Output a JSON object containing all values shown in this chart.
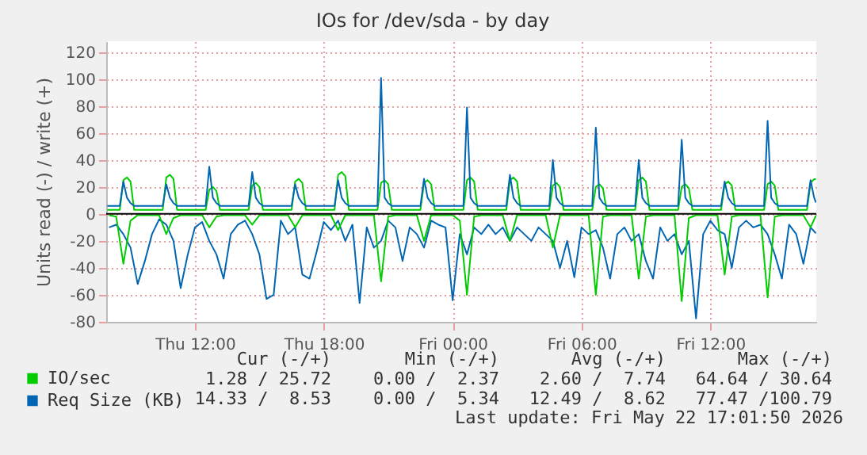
{
  "chart_data": {
    "type": "line",
    "title": "IOs for /dev/sda - by day",
    "ylabel": "Units read (-) / write (+)",
    "xlim": [
      "2026-05-21T07:52",
      "2026-05-22T16:56"
    ],
    "xticks": [
      {
        "value": "2026-05-21T12:00",
        "label": "Thu 12:00"
      },
      {
        "value": "2026-05-21T18:00",
        "label": "Thu 18:00"
      },
      {
        "value": "2026-05-22T00:00",
        "label": "Fri 00:00"
      },
      {
        "value": "2026-05-22T06:00",
        "label": "Fri 06:00"
      },
      {
        "value": "2026-05-22T12:00",
        "label": "Fri 12:00"
      }
    ],
    "ylim": [
      -80,
      128
    ],
    "yticks": [
      -80,
      -60,
      -40,
      -20,
      0,
      20,
      40,
      60,
      80,
      100,
      120
    ],
    "grid": true,
    "legend": "bottom",
    "x": [
      "2026-05-21T08:00",
      "2026-05-21T08:20",
      "2026-05-21T08:40",
      "2026-05-21T09:00",
      "2026-05-21T09:20",
      "2026-05-21T09:40",
      "2026-05-21T10:00",
      "2026-05-21T10:20",
      "2026-05-21T10:40",
      "2026-05-21T11:00",
      "2026-05-21T11:20",
      "2026-05-21T11:40",
      "2026-05-21T12:00",
      "2026-05-21T12:20",
      "2026-05-21T12:40",
      "2026-05-21T13:00",
      "2026-05-21T13:20",
      "2026-05-21T13:40",
      "2026-05-21T14:00",
      "2026-05-21T14:20",
      "2026-05-21T14:40",
      "2026-05-21T15:00",
      "2026-05-21T15:20",
      "2026-05-21T15:40",
      "2026-05-21T16:00",
      "2026-05-21T16:20",
      "2026-05-21T16:40",
      "2026-05-21T17:00",
      "2026-05-21T17:20",
      "2026-05-21T17:40",
      "2026-05-21T18:00",
      "2026-05-21T18:20",
      "2026-05-21T18:40",
      "2026-05-21T19:00",
      "2026-05-21T19:20",
      "2026-05-21T19:40",
      "2026-05-21T20:00",
      "2026-05-21T20:20",
      "2026-05-21T20:40",
      "2026-05-21T21:00",
      "2026-05-21T21:20",
      "2026-05-21T21:40",
      "2026-05-21T22:00",
      "2026-05-21T22:20",
      "2026-05-21T22:40",
      "2026-05-21T23:00",
      "2026-05-21T23:20",
      "2026-05-21T23:40",
      "2026-05-22T00:00",
      "2026-05-22T00:20",
      "2026-05-22T00:40",
      "2026-05-22T01:00",
      "2026-05-22T01:20",
      "2026-05-22T01:40",
      "2026-05-22T02:00",
      "2026-05-22T02:20",
      "2026-05-22T02:40",
      "2026-05-22T03:00",
      "2026-05-22T03:20",
      "2026-05-22T03:40",
      "2026-05-22T04:00",
      "2026-05-22T04:20",
      "2026-05-22T04:40",
      "2026-05-22T05:00",
      "2026-05-22T05:20",
      "2026-05-22T05:40",
      "2026-05-22T06:00",
      "2026-05-22T06:20",
      "2026-05-22T06:40",
      "2026-05-22T07:00",
      "2026-05-22T07:20",
      "2026-05-22T07:40",
      "2026-05-22T08:00",
      "2026-05-22T08:20",
      "2026-05-22T08:40",
      "2026-05-22T09:00",
      "2026-05-22T09:20",
      "2026-05-22T09:40",
      "2026-05-22T10:00",
      "2026-05-22T10:20",
      "2026-05-22T10:40",
      "2026-05-22T11:00",
      "2026-05-22T11:20",
      "2026-05-22T11:40",
      "2026-05-22T12:00",
      "2026-05-22T12:20",
      "2026-05-22T12:40",
      "2026-05-22T13:00",
      "2026-05-22T13:20",
      "2026-05-22T13:40",
      "2026-05-22T14:00",
      "2026-05-22T14:20",
      "2026-05-22T14:40",
      "2026-05-22T15:00",
      "2026-05-22T15:20",
      "2026-05-22T15:40",
      "2026-05-22T16:00",
      "2026-05-22T16:20",
      "2026-05-22T16:40",
      "2026-05-22T16:55"
    ],
    "series": [
      {
        "color": "#0066b3",
        "values": [
          -10,
          -8,
          -15,
          -25,
          -52,
          -35,
          -15,
          -4,
          -8,
          -20,
          -55,
          -30,
          -10,
          -6,
          -20,
          -30,
          -48,
          -15,
          -8,
          -5,
          -15,
          -30,
          -63,
          -60,
          -5,
          -15,
          -10,
          -45,
          -48,
          -28,
          -6,
          -12,
          -5,
          -20,
          -8,
          -66,
          -10,
          -25,
          -20,
          -5,
          -10,
          -35,
          -10,
          -15,
          -25,
          -5,
          -8,
          -10,
          -64,
          -15,
          -30,
          -10,
          -15,
          -8,
          -15,
          -10,
          -20,
          -10,
          -15,
          -20,
          -10,
          -15,
          -20,
          -40,
          -20,
          -47,
          -10,
          -15,
          -12,
          -25,
          -48,
          -15,
          -10,
          -20,
          -15,
          -35,
          -48,
          -10,
          -20,
          -15,
          -30,
          -20,
          -77.47,
          -15,
          -5,
          -12,
          -15,
          -40,
          -10,
          -5,
          -10,
          -8,
          -15,
          -30,
          -48,
          -8,
          -15,
          -37,
          -10,
          -14.33
        ]
      },
      {
        "color": "#00cc00",
        "values": [
          -1,
          -2,
          -37,
          -5,
          -1,
          -1,
          -1,
          -1,
          -15,
          -3,
          -1,
          -1,
          -1,
          -1,
          -10,
          -2,
          -1,
          -1,
          -1,
          -1,
          -8,
          -1,
          -1,
          -1,
          -1,
          -1,
          -10,
          -1,
          -1,
          -1,
          -1,
          -1,
          -12,
          -1,
          -1,
          -1,
          -1,
          -1,
          -50,
          -2,
          -1,
          -1,
          -1,
          -1,
          -20,
          -1,
          -1,
          -1,
          -1,
          -5,
          -60,
          -2,
          -1,
          -1,
          -1,
          -1,
          -20,
          -1,
          -1,
          -1,
          -1,
          -1,
          -25,
          -1,
          -1,
          -1,
          -1,
          -1,
          -60,
          -2,
          -1,
          -1,
          -1,
          -1,
          -48,
          -2,
          -1,
          -1,
          -1,
          -1,
          -64.64,
          -3,
          -1,
          -1,
          -1,
          -1,
          -45,
          -2,
          -1,
          -1,
          -1,
          -1,
          -62,
          -2,
          -1,
          -1,
          -1,
          -1,
          -10,
          -1.28
        ]
      },
      {
        "name": "IO/sec",
        "color": "#00cc00",
        "x": [
          "2026-05-21T07:55",
          "2026-05-21T08:30",
          "2026-05-21T08:40",
          "2026-05-21T08:50",
          "2026-05-21T09:00",
          "2026-05-21T09:10",
          "2026-05-21T10:30",
          "2026-05-21T10:40",
          "2026-05-21T10:50",
          "2026-05-21T11:00",
          "2026-05-21T11:10",
          "2026-05-21T12:30",
          "2026-05-21T12:40",
          "2026-05-21T12:50",
          "2026-05-21T13:00",
          "2026-05-21T13:10",
          "2026-05-21T14:30",
          "2026-05-21T14:40",
          "2026-05-21T14:50",
          "2026-05-21T15:00",
          "2026-05-21T15:10",
          "2026-05-21T16:30",
          "2026-05-21T16:40",
          "2026-05-21T16:50",
          "2026-05-21T17:00",
          "2026-05-21T17:10",
          "2026-05-21T18:30",
          "2026-05-21T18:40",
          "2026-05-21T18:50",
          "2026-05-21T19:00",
          "2026-05-21T19:10",
          "2026-05-21T20:30",
          "2026-05-21T20:40",
          "2026-05-21T20:50",
          "2026-05-21T21:00",
          "2026-05-21T21:10",
          "2026-05-21T22:30",
          "2026-05-21T22:40",
          "2026-05-21T22:50",
          "2026-05-21T23:00",
          "2026-05-21T23:10",
          "2026-05-22T00:30",
          "2026-05-22T00:40",
          "2026-05-22T00:50",
          "2026-05-22T01:00",
          "2026-05-22T01:10",
          "2026-05-22T02:30",
          "2026-05-22T02:40",
          "2026-05-22T02:50",
          "2026-05-22T03:00",
          "2026-05-22T03:10",
          "2026-05-22T04:30",
          "2026-05-22T04:40",
          "2026-05-22T04:50",
          "2026-05-22T05:00",
          "2026-05-22T05:10",
          "2026-05-22T06:30",
          "2026-05-22T06:40",
          "2026-05-22T06:50",
          "2026-05-22T07:00",
          "2026-05-22T07:10",
          "2026-05-22T08:30",
          "2026-05-22T08:40",
          "2026-05-22T08:50",
          "2026-05-22T09:00",
          "2026-05-22T09:10",
          "2026-05-22T10:30",
          "2026-05-22T10:40",
          "2026-05-22T10:50",
          "2026-05-22T11:00",
          "2026-05-22T11:10",
          "2026-05-22T12:30",
          "2026-05-22T12:40",
          "2026-05-22T12:50",
          "2026-05-22T13:00",
          "2026-05-22T13:10",
          "2026-05-22T14:30",
          "2026-05-22T14:40",
          "2026-05-22T14:50",
          "2026-05-22T15:00",
          "2026-05-22T15:10",
          "2026-05-22T16:30",
          "2026-05-22T16:40",
          "2026-05-22T16:50",
          "2026-05-22T16:55"
        ],
        "values": [
          3,
          3,
          25,
          27,
          24,
          3,
          3,
          27,
          29,
          26,
          3,
          3,
          18,
          20,
          17,
          3,
          3,
          21,
          23,
          20,
          3,
          3,
          24,
          26,
          23,
          3,
          3,
          29,
          31,
          28,
          3,
          3,
          23,
          25,
          22,
          3,
          3,
          23,
          25,
          22,
          3,
          3,
          25,
          27,
          24,
          3,
          3,
          25,
          27,
          24,
          3,
          3,
          21,
          23,
          20,
          3,
          3,
          20,
          22,
          19,
          3,
          3,
          25,
          27,
          24,
          3,
          3,
          20,
          22,
          19,
          3,
          3,
          22,
          24,
          21,
          3,
          3,
          22,
          24,
          21,
          3,
          3,
          23,
          25.72,
          25.72
        ]
      },
      {
        "name": "Req Size (KB)",
        "color": "#0066b3",
        "x": [
          "2026-05-21T07:55",
          "2026-05-21T08:30",
          "2026-05-21T08:40",
          "2026-05-21T08:50",
          "2026-05-21T09:00",
          "2026-05-21T09:10",
          "2026-05-21T10:30",
          "2026-05-21T10:40",
          "2026-05-21T10:50",
          "2026-05-21T11:00",
          "2026-05-21T11:10",
          "2026-05-21T12:30",
          "2026-05-21T12:40",
          "2026-05-21T12:50",
          "2026-05-21T13:00",
          "2026-05-21T13:10",
          "2026-05-21T14:30",
          "2026-05-21T14:40",
          "2026-05-21T14:50",
          "2026-05-21T15:00",
          "2026-05-21T15:10",
          "2026-05-21T16:30",
          "2026-05-21T16:40",
          "2026-05-21T16:50",
          "2026-05-21T17:00",
          "2026-05-21T17:10",
          "2026-05-21T18:30",
          "2026-05-21T18:40",
          "2026-05-21T18:50",
          "2026-05-21T19:00",
          "2026-05-21T19:10",
          "2026-05-21T20:30",
          "2026-05-21T20:40",
          "2026-05-21T20:50",
          "2026-05-21T21:00",
          "2026-05-21T21:10",
          "2026-05-21T22:30",
          "2026-05-21T22:40",
          "2026-05-21T22:50",
          "2026-05-21T23:00",
          "2026-05-21T23:10",
          "2026-05-22T00:30",
          "2026-05-22T00:40",
          "2026-05-22T00:50",
          "2026-05-22T01:00",
          "2026-05-22T01:10",
          "2026-05-22T02:30",
          "2026-05-22T02:40",
          "2026-05-22T02:50",
          "2026-05-22T03:00",
          "2026-05-22T03:10",
          "2026-05-22T04:30",
          "2026-05-22T04:40",
          "2026-05-22T04:50",
          "2026-05-22T05:00",
          "2026-05-22T05:10",
          "2026-05-22T06:30",
          "2026-05-22T06:40",
          "2026-05-22T06:50",
          "2026-05-22T07:00",
          "2026-05-22T07:10",
          "2026-05-22T08:30",
          "2026-05-22T08:40",
          "2026-05-22T08:50",
          "2026-05-22T09:00",
          "2026-05-22T09:10",
          "2026-05-22T10:30",
          "2026-05-22T10:40",
          "2026-05-22T10:50",
          "2026-05-22T11:00",
          "2026-05-22T11:10",
          "2026-05-22T12:30",
          "2026-05-22T12:40",
          "2026-05-22T12:50",
          "2026-05-22T13:00",
          "2026-05-22T13:10",
          "2026-05-22T14:30",
          "2026-05-22T14:40",
          "2026-05-22T14:50",
          "2026-05-22T15:00",
          "2026-05-22T15:10",
          "2026-05-22T16:30",
          "2026-05-22T16:40",
          "2026-05-22T16:50",
          "2026-05-22T16:55"
        ],
        "values": [
          6,
          6,
          24,
          12,
          8,
          6,
          6,
          22,
          12,
          8,
          6,
          6,
          35,
          12,
          8,
          6,
          6,
          31,
          12,
          8,
          6,
          6,
          22,
          12,
          8,
          6,
          6,
          25,
          12,
          8,
          6,
          6,
          100.79,
          12,
          8,
          6,
          6,
          26,
          12,
          8,
          6,
          6,
          79,
          12,
          8,
          6,
          6,
          29,
          12,
          8,
          6,
          6,
          40,
          12,
          8,
          6,
          6,
          64,
          12,
          8,
          6,
          6,
          40,
          12,
          8,
          6,
          6,
          55,
          12,
          8,
          6,
          6,
          24,
          12,
          8,
          6,
          6,
          69,
          12,
          8,
          6,
          6,
          25,
          12,
          8.53
        ]
      }
    ],
    "ref_lines": [
      {
        "axis": "y",
        "value": 0,
        "color": "#000000"
      }
    ],
    "annotations": [
      "Cur (-/+)",
      "Min (-/+)",
      "Avg (-/+)",
      "Max (-/+)",
      "1.28 / 25.72",
      "0.00 /  2.37",
      "2.60 /  7.74",
      "64.64 / 30.64",
      "14.33 /  8.53",
      "0.00 /  5.34",
      "12.49 /  8.62",
      "77.47 /100.79",
      "Last update: Fri May 22 17:01:50 2026"
    ]
  }
}
